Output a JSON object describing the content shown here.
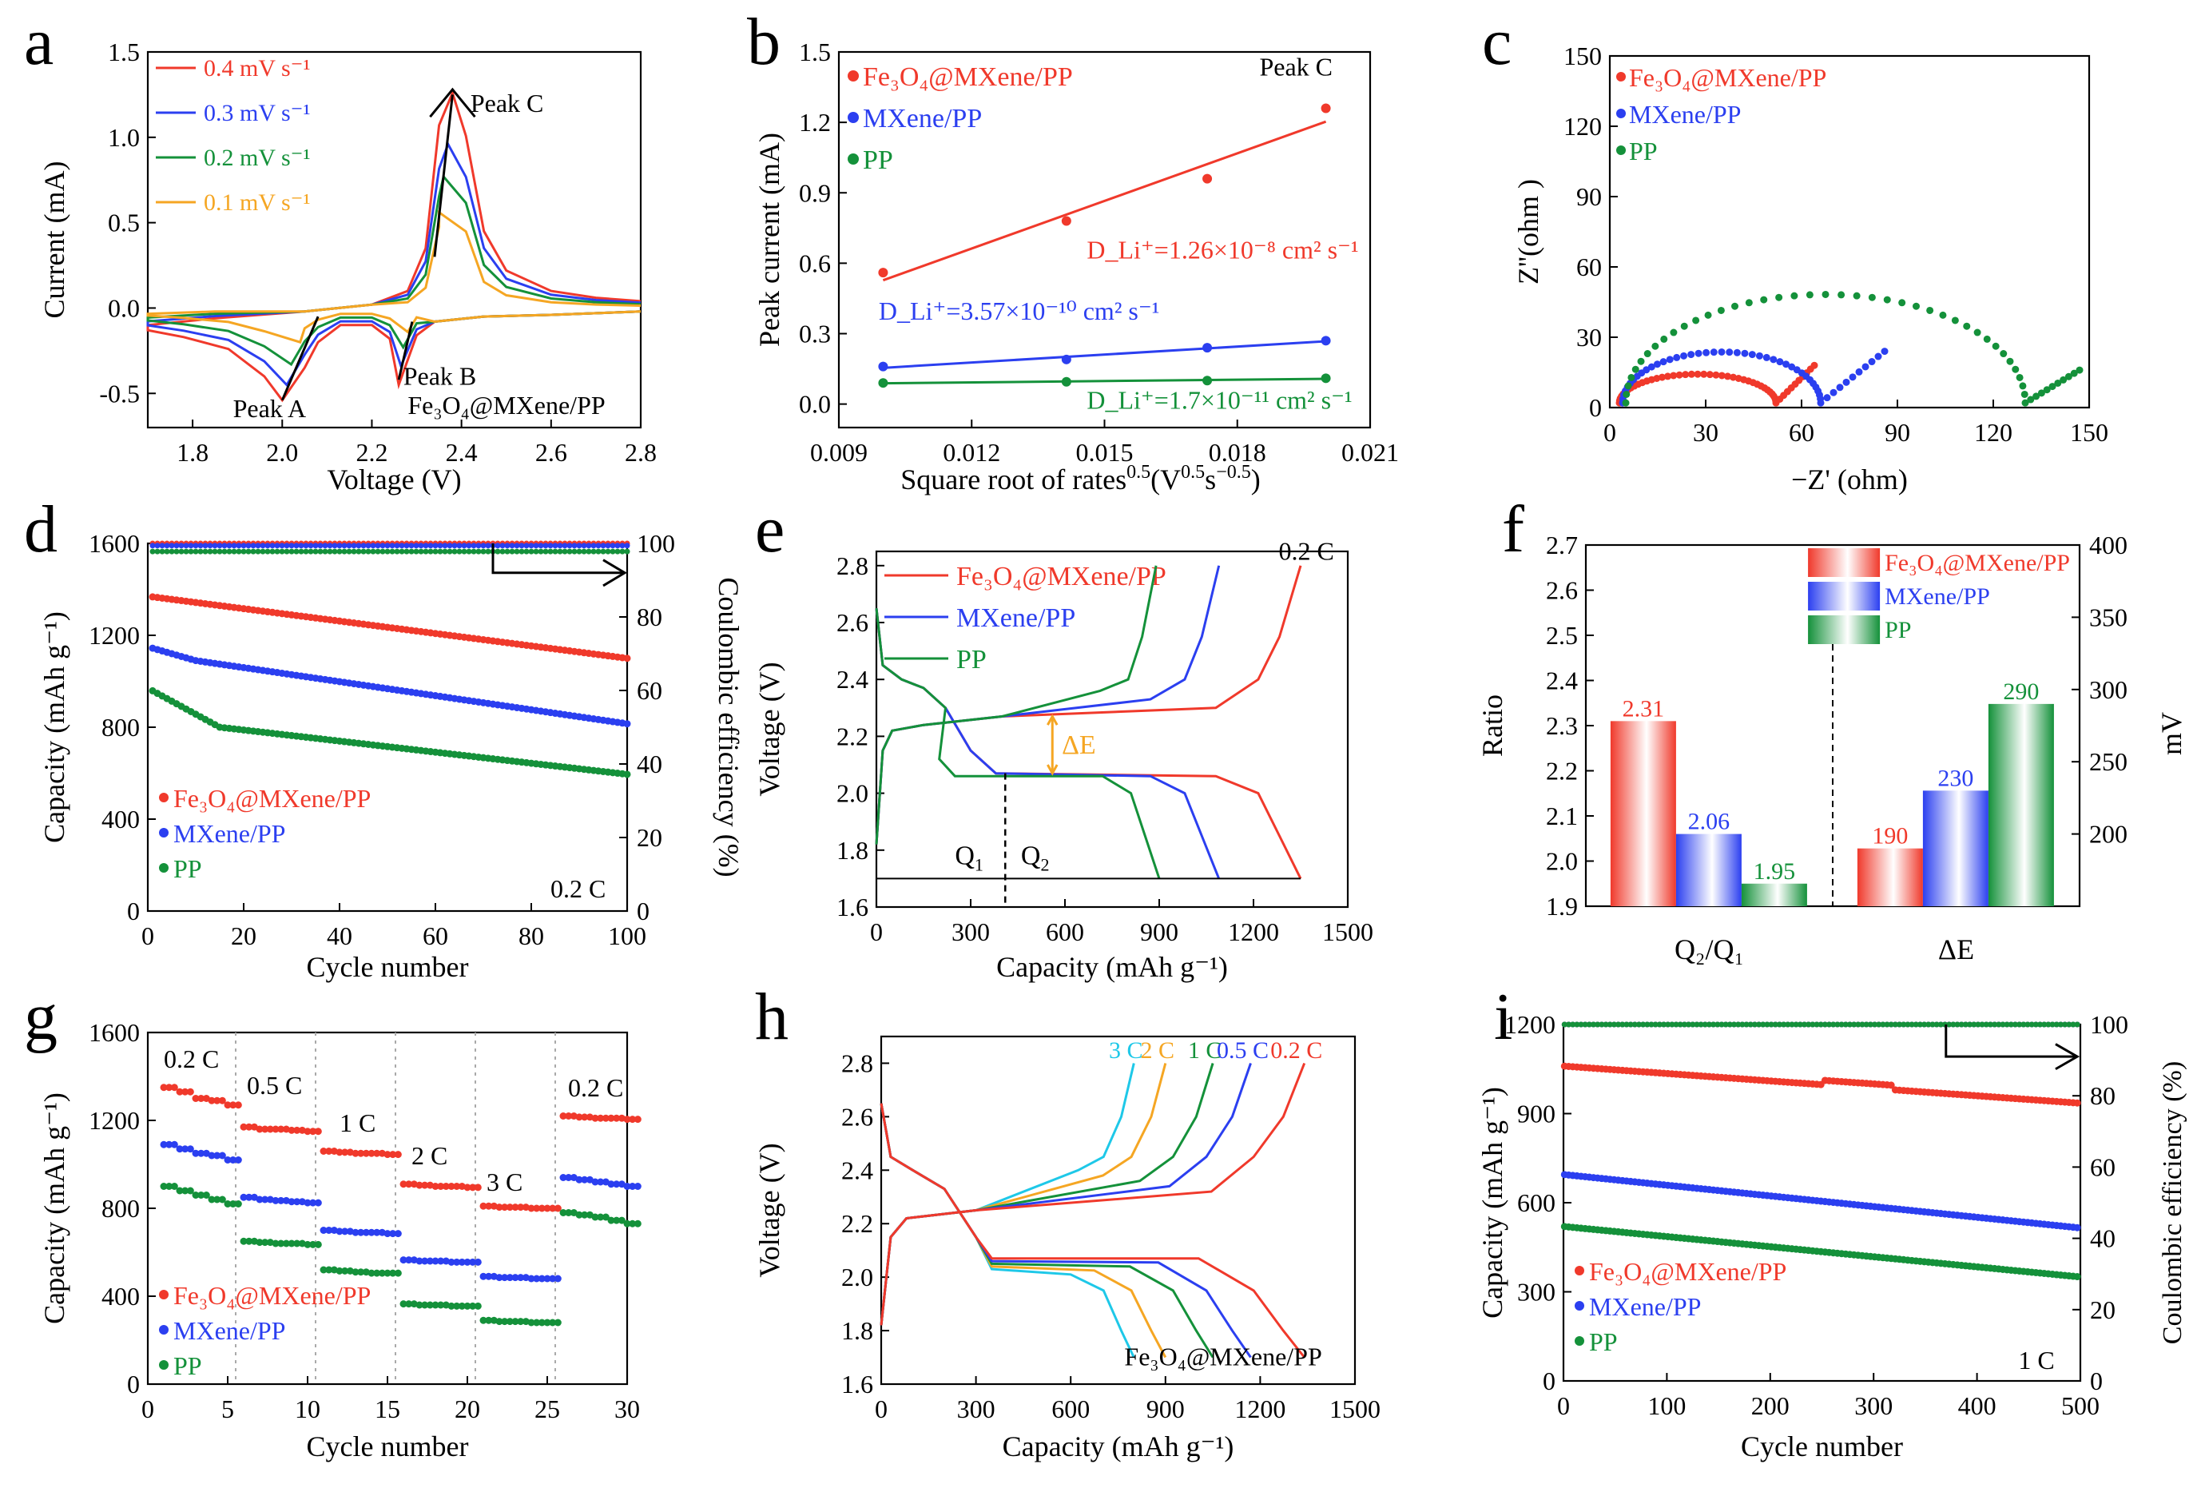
{
  "colors": {
    "red": "#f0392b",
    "blue": "#2b3ff0",
    "green": "#14913a",
    "orange": "#f5a623",
    "cyan": "#1ec8e8",
    "black": "#000000"
  },
  "chart_data": [
    {
      "panel": "a",
      "type": "line",
      "xlabel": "Voltage (V)",
      "ylabel": "Current  (mA)",
      "xlim": [
        1.7,
        2.8
      ],
      "ylim": [
        -0.7,
        1.5
      ],
      "xticks": [
        "1.8",
        "2.0",
        "2.2",
        "2.4",
        "2.6",
        "2.8"
      ],
      "yticks": [
        "-0.5",
        "0.0",
        "0.5",
        "1.0",
        "1.5"
      ],
      "legend": [
        "0.4 mV s⁻¹",
        "0.3 mV s⁻¹",
        "0.2 mV s⁻¹",
        "0.1 mV s⁻¹"
      ],
      "annotations": [
        "Peak A",
        "Peak B",
        "Peak C",
        "Fe₃O₄@MXene/PP"
      ],
      "series": [
        {
          "name": "0.4 mV s⁻¹",
          "color": "red",
          "cathodic_peak_A": [
            2.0,
            -0.54
          ],
          "cathodic_peak_B": [
            2.26,
            -0.45
          ],
          "anodic_peak_C": [
            2.38,
            1.26
          ]
        },
        {
          "name": "0.3 mV s⁻¹",
          "color": "blue",
          "cathodic_peak_A": [
            2.01,
            -0.45
          ],
          "cathodic_peak_B": [
            2.265,
            -0.34
          ],
          "anodic_peak_C": [
            2.37,
            0.96
          ]
        },
        {
          "name": "0.2 mV s⁻¹",
          "color": "green",
          "cathodic_peak_A": [
            2.02,
            -0.33
          ],
          "cathodic_peak_B": [
            2.27,
            -0.23
          ],
          "anodic_peak_C": [
            2.36,
            0.77
          ]
        },
        {
          "name": "0.1 mV s⁻¹",
          "color": "orange",
          "cathodic_peak_A": [
            2.04,
            -0.2
          ],
          "cathodic_peak_B": [
            2.28,
            -0.14
          ],
          "anodic_peak_C": [
            2.35,
            0.56
          ]
        }
      ]
    },
    {
      "panel": "b",
      "type": "scatter",
      "xlabel_main": "Square root of rates",
      "xlabel_sup1": "0.5",
      "xlabel_unit": "(V",
      "xlabel_sup2": "0.5",
      "xlabel_s": "s",
      "xlabel_sup3": "−0.5",
      "xlabel_close": ")",
      "ylabel": "Peak current  (mA)",
      "xlim": [
        0.009,
        0.021
      ],
      "ylim": [
        -0.1,
        1.5
      ],
      "xticks": [
        "0.009",
        "0.012",
        "0.015",
        "0.018",
        "0.021"
      ],
      "yticks": [
        "0.0",
        "0.3",
        "0.6",
        "0.9",
        "1.2",
        "1.5"
      ],
      "x": [
        0.01,
        0.01414,
        0.01732,
        0.02
      ],
      "annotations": [
        "Peak C",
        "D_Li⁺=1.26×10⁻⁸ cm² s⁻¹",
        "D_Li⁺=3.57×10⁻¹⁰ cm² s⁻¹",
        "D_Li⁺=1.7×10⁻¹¹ cm² s⁻¹"
      ],
      "series": [
        {
          "name": "Fe₃O₄@MXene/PP",
          "color": "red",
          "values": [
            0.56,
            0.78,
            0.96,
            1.26
          ]
        },
        {
          "name": "MXene/PP",
          "color": "blue",
          "values": [
            0.16,
            0.19,
            0.24,
            0.27
          ]
        },
        {
          "name": "PP",
          "color": "green",
          "values": [
            0.09,
            0.095,
            0.1,
            0.11
          ]
        }
      ]
    },
    {
      "panel": "c",
      "type": "scatter",
      "xlabel": "−Z' (ohm)",
      "ylabel": "Z''(ohm )",
      "xlim": [
        0,
        150
      ],
      "ylim": [
        0,
        150
      ],
      "xticks": [
        "0",
        "30",
        "60",
        "90",
        "120",
        "150"
      ],
      "yticks": [
        "0",
        "30",
        "60",
        "90",
        "120",
        "150"
      ],
      "series": [
        {
          "name": "Fe₃O₄@MXene/PP",
          "color": "red",
          "semicircle_start": 3,
          "semicircle_end": 52,
          "tail_end": [
            64,
            18
          ]
        },
        {
          "name": "MXene/PP",
          "color": "blue",
          "semicircle_start": 4,
          "semicircle_end": 66,
          "tail_end": [
            86,
            24
          ]
        },
        {
          "name": "PP",
          "color": "green",
          "semicircle_start": 5,
          "semicircle_end": 130,
          "tail_end": [
            147,
            16
          ]
        }
      ]
    },
    {
      "panel": "d",
      "type": "scatter",
      "xlabel": "Cycle number",
      "ylabel": "Capacity  (mAh g⁻¹)",
      "y2label": "Coulombic efficiency (%)",
      "xlim": [
        0,
        100
      ],
      "ylim": [
        0,
        1600
      ],
      "y2lim": [
        0,
        100
      ],
      "xticks": [
        "0",
        "20",
        "40",
        "60",
        "80",
        "100"
      ],
      "yticks": [
        "0",
        "400",
        "800",
        "1200",
        "1600"
      ],
      "y2ticks": [
        "0",
        "20",
        "40",
        "60",
        "80",
        "100"
      ],
      "annotations": [
        "0.2 C"
      ],
      "series": [
        {
          "name": "Fe₃O₄@MXene/PP",
          "color": "red",
          "capacity_start": 1370,
          "capacity_end": 1100,
          "ce": 100
        },
        {
          "name": "MXene/PP",
          "color": "blue",
          "capacity_start": 1150,
          "capacity_end": 815,
          "ce": 100
        },
        {
          "name": "PP",
          "color": "green",
          "capacity_start": 970,
          "capacity_end": 595,
          "ce": 99
        }
      ]
    },
    {
      "panel": "e",
      "type": "line",
      "xlabel": "Capacity  (mAh g⁻¹)",
      "ylabel": "Voltage  (V)",
      "xlim": [
        0,
        1500
      ],
      "ylim": [
        1.6,
        2.85
      ],
      "xticks": [
        "0",
        "300",
        "600",
        "900",
        "1200",
        "1500"
      ],
      "yticks": [
        "1.6",
        "1.8",
        "2.0",
        "2.2",
        "2.4",
        "2.6",
        "2.8"
      ],
      "annotations": [
        "0.2 C",
        "ΔE",
        "Q",
        "1",
        "Q",
        "2"
      ],
      "series": [
        {
          "name": "Fe₃O₄@MXene/PP",
          "color": "red",
          "discharge_capacity": 1350,
          "charge_capacity": 1350
        },
        {
          "name": "MXene/PP",
          "color": "blue",
          "discharge_capacity": 1090,
          "charge_capacity": 1090
        },
        {
          "name": "PP",
          "color": "green",
          "discharge_capacity": 900,
          "charge_capacity": 890
        }
      ]
    },
    {
      "panel": "f",
      "type": "bar",
      "categories": [
        "Q₂/Q₁",
        "ΔE"
      ],
      "ylabel": "Ratio",
      "y2label": "mV",
      "ylim": [
        1.9,
        2.7
      ],
      "y2lim": [
        150,
        400
      ],
      "yticks": [
        "1.9",
        "2.0",
        "2.1",
        "2.2",
        "2.3",
        "2.4",
        "2.5",
        "2.6",
        "2.7"
      ],
      "y2ticks": [
        "200",
        "250",
        "300",
        "350",
        "400"
      ],
      "series": [
        {
          "name": "Fe₃O₄@MXene/PP",
          "color": "red",
          "ratio": 2.31,
          "mv": 190,
          "ratio_label": "2.31",
          "mv_label": "190"
        },
        {
          "name": "MXene/PP",
          "color": "blue",
          "ratio": 2.06,
          "mv": 230,
          "ratio_label": "2.06",
          "mv_label": "230"
        },
        {
          "name": "PP",
          "color": "green",
          "ratio": 1.95,
          "mv": 290,
          "ratio_label": "1.95",
          "mv_label": "290"
        }
      ]
    },
    {
      "panel": "g",
      "type": "scatter",
      "xlabel": "Cycle number",
      "ylabel": "Capacity  (mAh g⁻¹)",
      "xlim": [
        0,
        30
      ],
      "ylim": [
        0,
        1600
      ],
      "xticks": [
        "0",
        "5",
        "10",
        "15",
        "20",
        "25",
        "30"
      ],
      "yticks": [
        "0",
        "400",
        "800",
        "1200",
        "1600"
      ],
      "rate_labels": [
        "0.2 C",
        "0.5 C",
        "1 C",
        "2 C",
        "3 C",
        "0.2 C"
      ],
      "series": [
        {
          "name": "Fe₃O₄@MXene/PP",
          "color": "red",
          "values": [
            1350,
            1330,
            1300,
            1290,
            1270,
            1170,
            1160,
            1160,
            1155,
            1150,
            1060,
            1055,
            1050,
            1050,
            1045,
            910,
            905,
            900,
            900,
            895,
            810,
            805,
            805,
            800,
            800,
            1220,
            1215,
            1210,
            1210,
            1205
          ]
        },
        {
          "name": "MXene/PP",
          "color": "blue",
          "values": [
            1090,
            1070,
            1050,
            1040,
            1020,
            850,
            840,
            835,
            830,
            825,
            700,
            695,
            690,
            690,
            685,
            565,
            560,
            560,
            555,
            555,
            490,
            485,
            485,
            480,
            480,
            940,
            930,
            920,
            910,
            900
          ]
        },
        {
          "name": "PP",
          "color": "green",
          "values": [
            900,
            880,
            860,
            840,
            820,
            650,
            645,
            640,
            640,
            635,
            520,
            515,
            510,
            505,
            505,
            365,
            360,
            360,
            355,
            355,
            290,
            285,
            285,
            280,
            280,
            780,
            770,
            760,
            745,
            730
          ]
        }
      ]
    },
    {
      "panel": "h",
      "type": "line",
      "xlabel": "Capacity  (mAh g⁻¹)",
      "ylabel": "Voltage  (V)",
      "xlim": [
        0,
        1500
      ],
      "ylim": [
        1.6,
        2.9
      ],
      "xticks": [
        "0",
        "300",
        "600",
        "900",
        "1200",
        "1500"
      ],
      "yticks": [
        "1.6",
        "1.8",
        "2.0",
        "2.2",
        "2.4",
        "2.6",
        "2.8"
      ],
      "annotations": [
        "Fe₃O₄@MXene/PP"
      ],
      "series": [
        {
          "name": "3 C",
          "color": "cyan",
          "capacity": 800
        },
        {
          "name": "2 C",
          "color": "orange",
          "capacity": 900
        },
        {
          "name": "1 C",
          "color": "green",
          "capacity": 1050
        },
        {
          "name": "0.5 C",
          "color": "blue",
          "capacity": 1170
        },
        {
          "name": "0.2 C",
          "color": "red",
          "capacity": 1340
        }
      ]
    },
    {
      "panel": "i",
      "type": "scatter",
      "xlabel": "Cycle number",
      "ylabel": "Capacity  (mAh g⁻¹)",
      "y2label": "Coulombic efficiency (%)",
      "xlim": [
        0,
        500
      ],
      "ylim": [
        0,
        1200
      ],
      "y2lim": [
        0,
        100
      ],
      "xticks": [
        "0",
        "100",
        "200",
        "300",
        "400",
        "500"
      ],
      "yticks": [
        "0",
        "300",
        "600",
        "900",
        "1200"
      ],
      "y2ticks": [
        "0",
        "20",
        "40",
        "60",
        "80",
        "100"
      ],
      "annotations": [
        "1 C"
      ],
      "series": [
        {
          "name": "Fe₃O₄@MXene/PP",
          "color": "red",
          "capacity_start": 1060,
          "capacity_end": 935,
          "ce": 100
        },
        {
          "name": "MXene/PP",
          "color": "blue",
          "capacity_start": 695,
          "capacity_end": 515,
          "ce": 100
        },
        {
          "name": "PP",
          "color": "green",
          "capacity_start": 520,
          "capacity_end": 350,
          "ce": 100
        }
      ]
    }
  ]
}
